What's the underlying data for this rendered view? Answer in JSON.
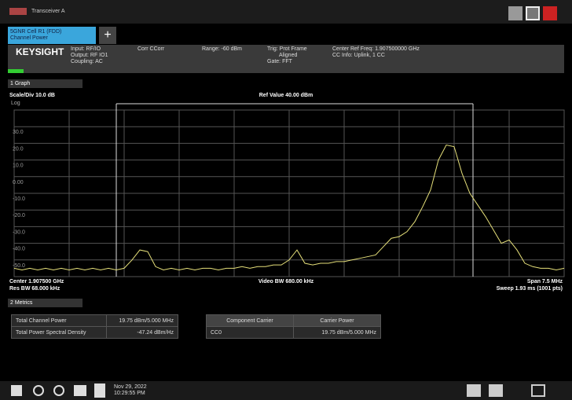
{
  "window": {
    "title": "Transceiver A"
  },
  "tab": {
    "line1": "5GNR Cell R1 (FDD)",
    "line2": "Channel Power",
    "add": "+"
  },
  "info": {
    "brand": "KEYSIGHT",
    "input": [
      "Input: RF/IO",
      "Output: RF IO1",
      "Coupling: AC"
    ],
    "corr": "Corr CCorr",
    "range": "Range: -60 dBm",
    "trig": [
      "Trig: Prot Frame",
      "Aligned",
      "Gate: FFT"
    ],
    "center": [
      "Center Ref Freq: 1.907500000 GHz",
      "CC Info: Uplink, 1 CC"
    ]
  },
  "graph_menu": "1 Graph",
  "chart_data": {
    "type": "line",
    "scale": "Scale/Div 10.0 dB",
    "ref": "Ref Value 40.00 dBm",
    "scale_type": "Log",
    "ylim": [
      -60,
      40
    ],
    "yticks": [
      {
        "value": 30,
        "label": "30.0"
      },
      {
        "value": 20,
        "label": "20.0"
      },
      {
        "value": 10,
        "label": "10.0"
      },
      {
        "value": 0,
        "label": "0.00"
      },
      {
        "value": -10,
        "label": "-10.0"
      },
      {
        "value": -20,
        "label": "-20.0"
      },
      {
        "value": -30,
        "label": "-30.0"
      },
      {
        "value": -40,
        "label": "-40.0"
      },
      {
        "value": -50,
        "label": "-50.0"
      }
    ],
    "grid": true,
    "series": [
      {
        "name": "Trace 1",
        "color": "#e6e07a",
        "values": [
          -55,
          -56,
          -55,
          -56,
          -55,
          -56,
          -55,
          -56,
          -55,
          -56,
          -55,
          -56,
          -55,
          -56,
          -55,
          -50,
          -44,
          -45,
          -54,
          -56,
          -55,
          -56,
          -55,
          -56,
          -55,
          -55,
          -56,
          -55,
          -55,
          -54,
          -55,
          -54,
          -54,
          -53,
          -53,
          -50,
          -44,
          -52,
          -53,
          -52,
          -52,
          -51,
          -51,
          -50,
          -49,
          -48,
          -47,
          -42,
          -37,
          -36,
          -33,
          -27,
          -18,
          -8,
          10,
          19,
          18,
          2,
          -10,
          -17,
          -24,
          -32,
          -40,
          -38,
          -44,
          -52,
          -54,
          -55,
          -55,
          -56,
          -55
        ]
      }
    ],
    "footer": {
      "center": "Center 1.907500 GHz",
      "vbw": "Video BW 680.00 kHz",
      "span": "Span 7.5 MHz",
      "rbw": "Res BW 68.000 kHz",
      "sweep": "Sweep 1.93 ms (1001 pts)"
    }
  },
  "metrics_menu": "2 Metrics",
  "table": {
    "rows": [
      [
        "Total Channel Power",
        "19.75 dBm/5.000 MHz"
      ],
      [
        "Total Power Spectral Density",
        "-47.24 dBm/Hz"
      ]
    ]
  },
  "carrier_table": {
    "header": [
      "Component Carrier",
      "Carrier Power"
    ],
    "rows": [
      [
        "CC0",
        "19.75 dBm/5.000 MHz"
      ]
    ]
  },
  "taskbar": {
    "date": "Nov 29, 2022",
    "time": "10:29:55 PM"
  }
}
